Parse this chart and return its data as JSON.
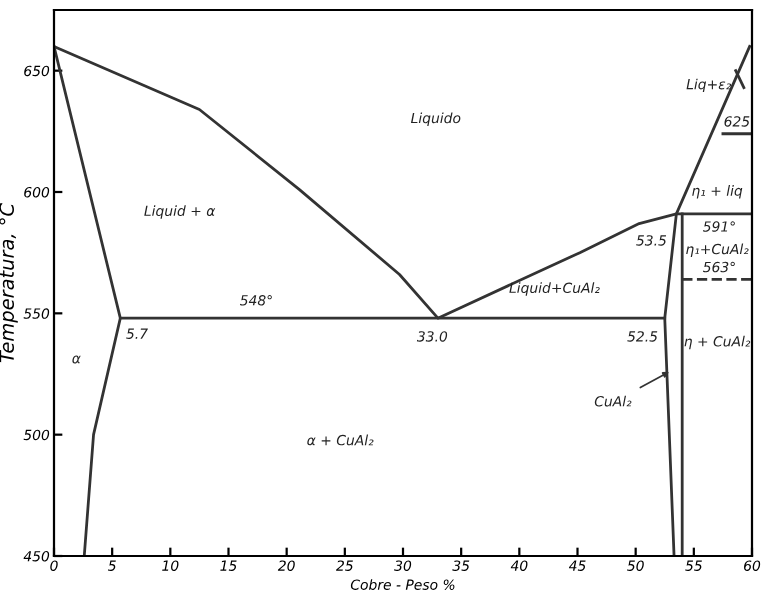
{
  "chart_data": {
    "type": "line",
    "xlabel": "Cobre - Peso %",
    "ylabel": "Temperatura, °C",
    "xlim": [
      0,
      60
    ],
    "ylim": [
      450,
      675
    ],
    "xticks": [
      0,
      5,
      10,
      15,
      20,
      25,
      30,
      35,
      40,
      45,
      50,
      55,
      60
    ],
    "yticks": [
      450,
      500,
      550,
      600,
      650
    ],
    "grid": false,
    "legend": false,
    "marker": "none",
    "line_style": "solid",
    "series": [
      {
        "color": "#333333",
        "x": [
          0,
          12.5,
          21.1,
          29.7,
          33,
          45.2,
          50.3,
          53.5,
          60
        ],
        "values": [
          660,
          634,
          601,
          566,
          548,
          575,
          587,
          591,
          591
        ]
      },
      {
        "color": "#333333",
        "x": [
          0,
          5.7,
          52.5
        ],
        "values": [
          660,
          548,
          548
        ]
      },
      {
        "color": "#333333",
        "x": [
          5.7,
          3.4,
          2.6
        ],
        "values": [
          548,
          500,
          450
        ]
      },
      {
        "color": "#333333",
        "x": [
          53.3,
          52.5,
          53.5,
          59.8
        ],
        "values": [
          450,
          548,
          591,
          660
        ]
      },
      {
        "color": "#333333",
        "x": [
          54,
          54
        ],
        "values": [
          591,
          450
        ]
      },
      {
        "color": "#333333",
        "x": [
          57.5,
          60
        ],
        "values": [
          624,
          624
        ]
      },
      {
        "color": "#333333",
        "x": [
          54,
          60
        ],
        "values": [
          564,
          564
        ],
        "line_style": "dashed"
      },
      {
        "color": "#333333",
        "x": [
          58.6,
          59.3
        ],
        "values": [
          650,
          643
        ]
      }
    ],
    "annotations": [
      "Liquido",
      "Liquid + α",
      {
        "text": "548°",
        "x": 17.4,
        "y": 548
      },
      {
        "text": "5.7",
        "x": 5.7,
        "y": 548
      },
      "α",
      "α + CuAl₂",
      {
        "text": "33.0",
        "x": 33,
        "y": 548
      },
      {
        "text": "52.5",
        "x": 52.5,
        "y": 548
      },
      {
        "text": "53.5",
        "x": 53.5,
        "y": 591
      },
      "Liquid+CuAl₂",
      {
        "text": "CuAl₂",
        "x": 53.3,
        "y": 527
      },
      "η + CuAl₂",
      "η₁+CuAl₂",
      {
        "text": "591°",
        "x": 57.2,
        "y": 591
      },
      {
        "text": "563°",
        "x": 57.2,
        "y": 564
      },
      "η₁ + liq",
      {
        "text": "625",
        "x": 58.7,
        "y": 624
      },
      "Liq+ε₂"
    ]
  }
}
